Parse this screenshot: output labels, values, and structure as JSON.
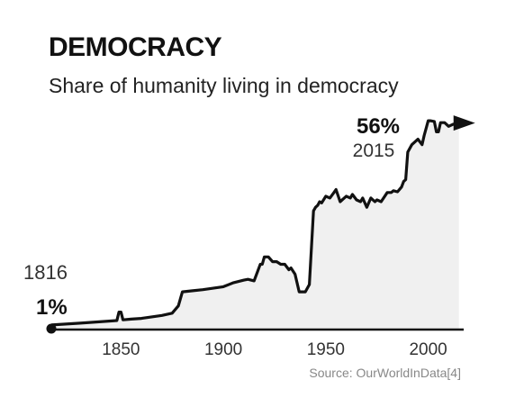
{
  "chart_data": {
    "type": "area",
    "title": "DEMOCRACY",
    "subtitle": "Share of humanity living in democracy",
    "xlabel": "",
    "ylabel": "",
    "xlim": [
      1816,
      2016
    ],
    "ylim": [
      0,
      58
    ],
    "x_ticks": [
      "1850",
      "1900",
      "1950",
      "2000"
    ],
    "grid": false,
    "legend": "none",
    "annotations": {
      "start": {
        "year_label": "1816",
        "value_label": "1%"
      },
      "end": {
        "value_label": "56%",
        "year_label": "2015"
      }
    },
    "source": "Source: OurWorldInData[4]",
    "colors": {
      "line": "#111111",
      "fill": "#f0f0f0",
      "text": "#111111",
      "source_text": "#888888"
    },
    "series": [
      {
        "x": [
          1816,
          1830,
          1848,
          1849,
          1850,
          1851,
          1855,
          1860,
          1865,
          1870,
          1875,
          1878,
          1880,
          1885,
          1890,
          1895,
          1900,
          1905,
          1910,
          1912,
          1915,
          1918,
          1919,
          1920,
          1922,
          1924,
          1926,
          1928,
          1930,
          1932,
          1933,
          1935,
          1937,
          1940,
          1942,
          1944,
          1945,
          1946,
          1947,
          1948,
          1950,
          1952,
          1954,
          1955,
          1957,
          1960,
          1962,
          1963,
          1965,
          1967,
          1968,
          1970,
          1972,
          1974,
          1975,
          1977,
          1980,
          1982,
          1983,
          1985,
          1987,
          1988,
          1989,
          1990,
          1992,
          1995,
          1997,
          1998,
          2000,
          2001,
          2003,
          2004,
          2005,
          2006,
          2007,
          2008,
          2010,
          2012,
          2015
        ],
        "values": [
          1,
          1.5,
          2.2,
          4.5,
          4.5,
          2.4,
          2.6,
          2.8,
          3.2,
          3.6,
          4.2,
          6.2,
          10.0,
          10.3,
          10.6,
          11.0,
          11.4,
          12.5,
          13.2,
          13.4,
          13.0,
          17.5,
          17.5,
          19.5,
          19.5,
          18.2,
          18.2,
          17.5,
          17.5,
          16.0,
          16.5,
          14.8,
          10.0,
          10.0,
          12.0,
          32.0,
          33.0,
          33.5,
          34.5,
          34.2,
          36.0,
          35.5,
          37.0,
          37.8,
          34.5,
          36.0,
          35.5,
          36.5,
          35.0,
          34.5,
          35.5,
          33.0,
          35.5,
          34.5,
          35.0,
          34.5,
          37.0,
          37.0,
          37.5,
          37.2,
          38.5,
          40.0,
          40.5,
          48.0,
          50.0,
          51.5,
          50.0,
          52.5,
          56.5,
          56.5,
          56.3,
          53.5,
          53.5,
          56.0,
          56.0,
          56.0,
          55.0,
          55.5,
          56.0
        ]
      }
    ]
  }
}
